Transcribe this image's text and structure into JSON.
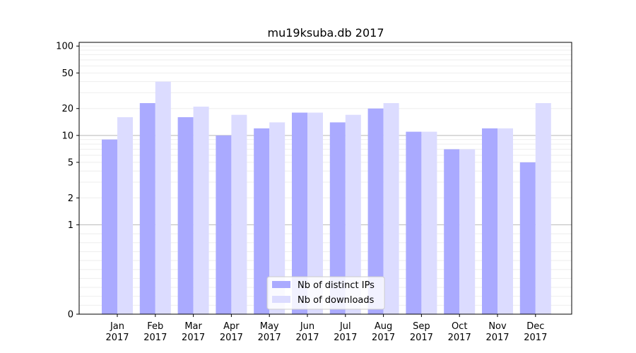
{
  "chart_data": {
    "type": "bar",
    "title": "mu19ksuba.db 2017",
    "categories": [
      "Jan\n2017",
      "Feb\n2017",
      "Mar\n2017",
      "Apr\n2017",
      "May\n2017",
      "Jun\n2017",
      "Jul\n2017",
      "Aug\n2017",
      "Sep\n2017",
      "Oct\n2017",
      "Nov\n2017",
      "Dec\n2017"
    ],
    "series": [
      {
        "name": "Nb of distinct IPs",
        "color": "#aaaaff",
        "values": [
          9,
          23,
          16,
          10,
          12,
          18,
          14,
          20,
          11,
          7,
          12,
          5
        ]
      },
      {
        "name": "Nb of downloads",
        "color": "#dcdcff",
        "values": [
          16,
          40,
          21,
          17,
          14,
          18,
          17,
          23,
          11,
          7,
          12,
          23
        ]
      }
    ],
    "yscale": "symlog",
    "yticks": [
      0,
      1,
      2,
      5,
      10,
      20,
      50,
      100
    ],
    "ylim": [
      0,
      110
    ],
    "grid": true,
    "legend": "bottom-center"
  }
}
